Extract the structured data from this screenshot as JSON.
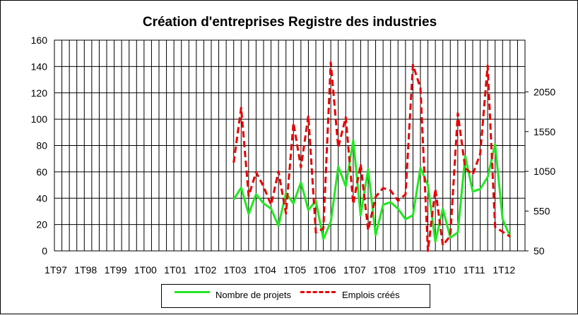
{
  "chart_data": {
    "type": "line",
    "title": "Création d'entreprises Registre des industries",
    "categories": [
      "1T97",
      "1T98",
      "1T99",
      "1T00",
      "1T01",
      "1T02",
      "1T03",
      "1T04",
      "1T05",
      "1T06",
      "1T07",
      "1T08",
      "1T09",
      "1T10",
      "1T11",
      "1T12"
    ],
    "y_left": {
      "min": 0,
      "max": 160,
      "ticks": [
        0,
        20,
        40,
        60,
        80,
        100,
        120,
        140,
        160
      ]
    },
    "y_right": {
      "min": 50,
      "max": 2700,
      "ticks": [
        50,
        550,
        1050,
        1550,
        2050
      ]
    },
    "grid": true,
    "legend_position": "bottom",
    "series": [
      {
        "name": "Nombre de projets",
        "color": "#22e622",
        "style": "solid",
        "axis": "left",
        "x": [
          2003.0,
          2003.25,
          2003.5,
          2003.75,
          2004.0,
          2004.25,
          2004.5,
          2004.75,
          2005.0,
          2005.25,
          2005.5,
          2005.75,
          2006.0,
          2006.25,
          2006.5,
          2006.75,
          2007.0,
          2007.25,
          2007.5,
          2007.75,
          2008.0,
          2008.25,
          2008.5,
          2008.75,
          2009.0,
          2009.25,
          2009.5,
          2009.75,
          2010.0,
          2010.25,
          2010.5,
          2010.75,
          2011.0,
          2011.25,
          2011.5,
          2011.75,
          2012.0,
          2012.25
        ],
        "y": [
          39,
          48,
          28,
          43,
          36,
          32,
          19,
          44,
          36,
          52,
          31,
          38,
          9,
          22,
          64,
          49,
          84,
          27,
          62,
          12,
          35,
          37,
          32,
          24,
          27,
          63,
          50,
          7,
          32,
          10,
          14,
          72,
          45,
          47,
          56,
          81,
          24,
          11
        ]
      },
      {
        "name": "Emplois créés",
        "color": "#e60000",
        "style": "dashed",
        "axis": "right",
        "x": [
          2003.0,
          2003.25,
          2003.5,
          2003.75,
          2004.0,
          2004.25,
          2004.5,
          2004.75,
          2005.0,
          2005.25,
          2005.5,
          2005.75,
          2006.0,
          2006.25,
          2006.5,
          2006.75,
          2007.0,
          2007.25,
          2007.5,
          2007.75,
          2008.0,
          2008.25,
          2008.5,
          2008.75,
          2009.0,
          2009.25,
          2009.5,
          2009.75,
          2010.0,
          2010.25,
          2010.5,
          2010.75,
          2011.0,
          2011.25,
          2011.5,
          2011.75,
          2012.0,
          2012.25
        ],
        "y": [
          1160,
          1850,
          740,
          1040,
          860,
          630,
          1050,
          520,
          1660,
          1100,
          1750,
          280,
          330,
          2420,
          1350,
          1730,
          640,
          1140,
          310,
          730,
          840,
          810,
          680,
          760,
          2390,
          2100,
          50,
          830,
          120,
          240,
          1780,
          1090,
          1010,
          1270,
          2380,
          350,
          290,
          230
        ]
      }
    ]
  }
}
